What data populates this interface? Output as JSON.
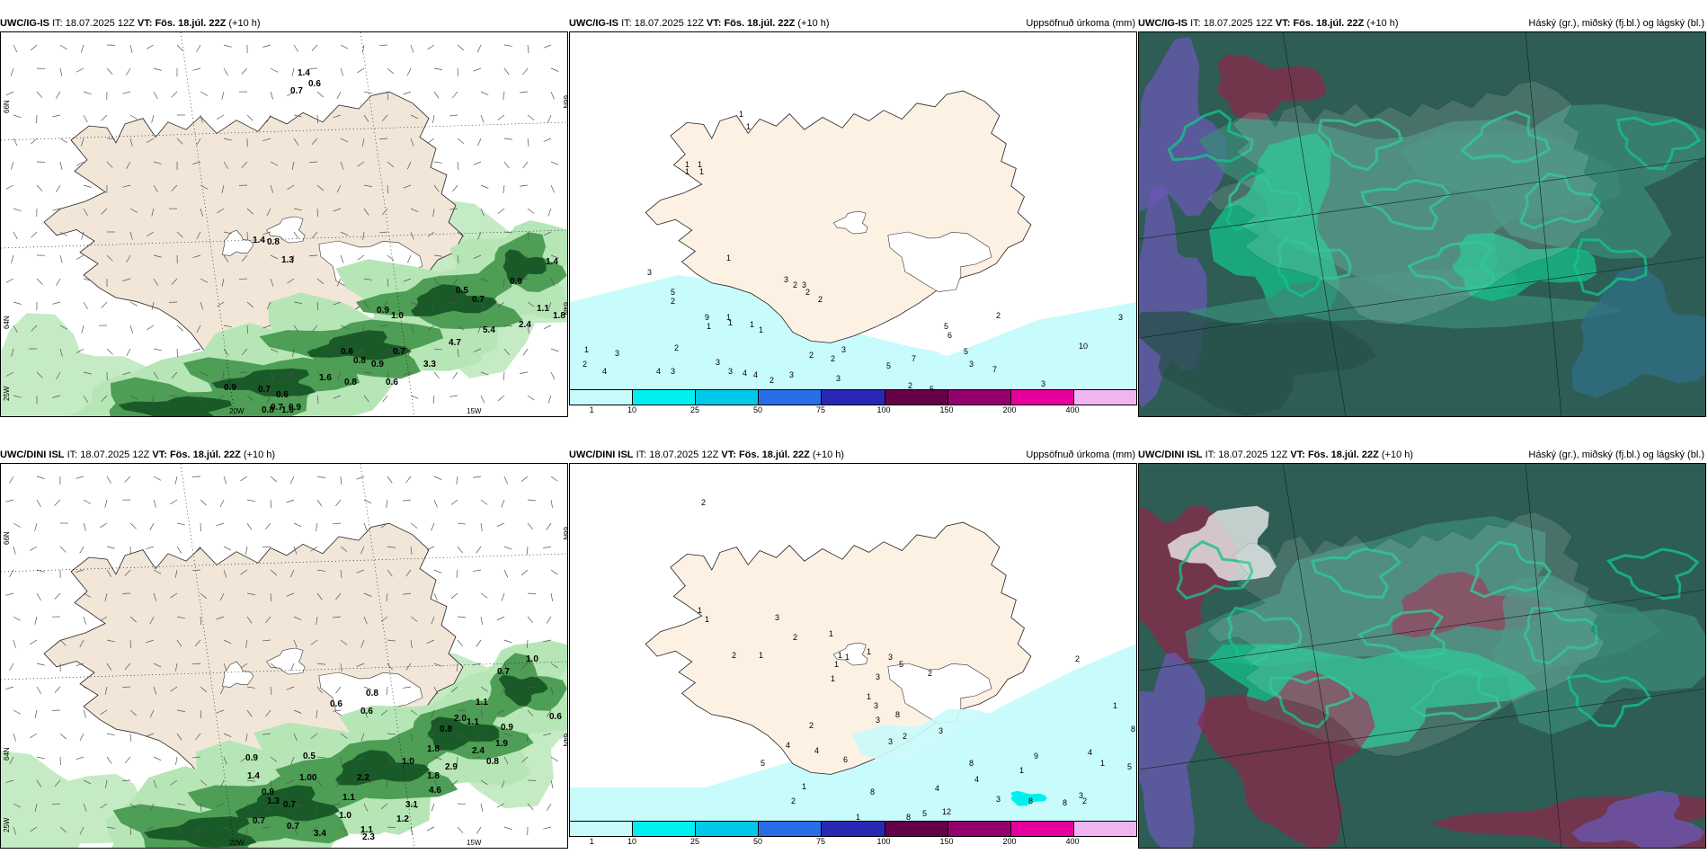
{
  "rows": [
    {
      "model": "UWC/IG-IS",
      "it_label": "IT:",
      "it_value": "18.07.2025 12Z",
      "vt_label": "VT:",
      "vt_value": "Fös. 18.júl. 22Z",
      "lead": "(+10 h)",
      "lon_ticks": [
        "20W",
        "15W"
      ],
      "lat_ticks_left": [
        "66N",
        "64N",
        "25W"
      ],
      "lat_ticks_right": [
        "66N",
        "64N"
      ],
      "wind_values": [
        "1.4",
        "0.6",
        "0.7",
        "1.4",
        "0.8",
        "1.3",
        "1.4",
        "0.9",
        "0.5",
        "0.7",
        "1.8",
        "1.1",
        "0.9",
        "1.0",
        "2.4",
        "5.4",
        "4.7",
        "0.6",
        "0.8",
        "0.7",
        "3.3",
        "0.9",
        "0.6",
        "0.8",
        "0.9",
        "0.7",
        "0.6",
        "0.7",
        "0.9",
        "1.0",
        "0.8",
        "1.6"
      ],
      "precip_values": [
        "1",
        "1",
        "1",
        "1",
        "1",
        "1",
        "3",
        "5",
        "2",
        "1",
        "9",
        "1",
        "1",
        "1",
        "1",
        "1",
        "3",
        "2",
        "3",
        "2",
        "2",
        "2",
        "1",
        "2",
        "3",
        "4",
        "4",
        "3",
        "3",
        "3",
        "4",
        "4",
        "2",
        "3",
        "2",
        "2",
        "3",
        "7",
        "5",
        "5",
        "6",
        "5",
        "3",
        "2",
        "5",
        "7",
        "2",
        "10",
        "3",
        "3",
        "3"
      ]
    },
    {
      "model": "UWC/DINI ISL",
      "it_label": "IT:",
      "it_value": "18.07.2025 12Z",
      "vt_label": "VT:",
      "vt_value": "Fös. 18.júl. 22Z",
      "lead": "(+10 h)",
      "lon_ticks": [
        "20W",
        "15W"
      ],
      "lat_ticks_left": [
        "66N",
        "64N",
        "25W"
      ],
      "lat_ticks_right": [
        "66N",
        "64N"
      ],
      "wind_values": [
        "1.0",
        "0.7",
        "1.1",
        "0.8",
        "0.6",
        "0.6",
        "2.0",
        "0.9",
        "0.8",
        "1.1",
        "0.6",
        "1.9",
        "1.8",
        "2.4",
        "0.8",
        "1.0",
        "0.5",
        "0.9",
        "1.8",
        "2.9",
        "1.4",
        "1.00",
        "2.2",
        "4.6",
        "0.9",
        "1.1",
        "3.1",
        "1.3",
        "0.7",
        "1.0",
        "1.2",
        "0.7",
        "0.7",
        "1.1",
        "3.4",
        "2.3"
      ],
      "precip_values": [
        "2",
        "1",
        "1",
        "2",
        "1",
        "3",
        "2",
        "1",
        "1",
        "1",
        "1",
        "1",
        "3",
        "3",
        "5",
        "2",
        "1",
        "1",
        "3",
        "3",
        "2",
        "8",
        "2",
        "4",
        "4",
        "5",
        "6",
        "3",
        "1",
        "2",
        "1",
        "5",
        "4",
        "1",
        "3",
        "4",
        "8",
        "8",
        "8",
        "8",
        "4",
        "3",
        "12",
        "8",
        "3",
        "9",
        "4",
        "2",
        "1",
        "8",
        "5",
        "1",
        "2"
      ]
    }
  ],
  "precip_title": "Uppsöfnuð úrkoma (mm)",
  "cloud_title": "Háský (gr.), miðský (fj.bl.) og lágský (bl.)",
  "colorbar": {
    "ticks": [
      "1",
      "10",
      "25",
      "50",
      "75",
      "100",
      "150",
      "200",
      "400"
    ],
    "colors": [
      "#c8fbfb",
      "#00f0f0",
      "#00c8e6",
      "#2a6ee6",
      "#2828b4",
      "#640046",
      "#96006e",
      "#e6009c",
      "#f0b4f0"
    ]
  },
  "colors": {
    "land": "#f2e6d9",
    "land_precip": "#fdf1e4",
    "sea_precip": "#b4f8f8",
    "ice": "#ffffff",
    "green_light": "#b6e6b6",
    "green_mid": "#4e9e55",
    "green_dark": "#1a5a28",
    "cloud_base": "#2d5d54",
    "cloud_teal": "#3b8a78",
    "cloud_green": "#15c08a",
    "cloud_purple": "#6a58b4",
    "cloud_red": "#8a2a4a"
  }
}
